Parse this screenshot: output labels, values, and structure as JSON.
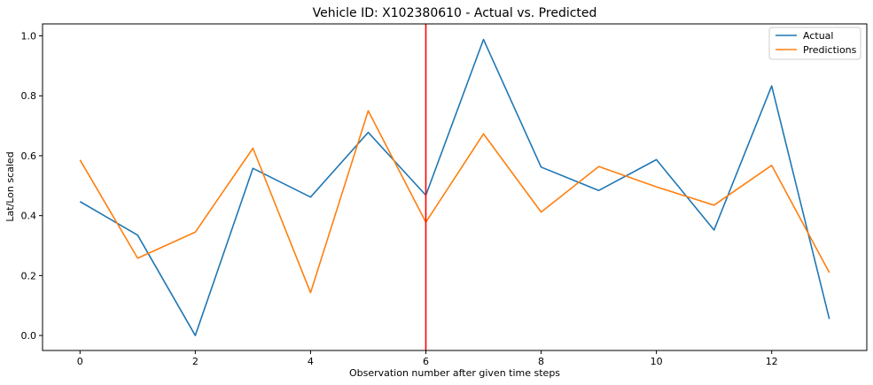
{
  "chart_data": {
    "type": "line",
    "title": "Vehicle ID: X102380610 - Actual vs. Predicted",
    "xlabel": "Observation number after given time steps",
    "ylabel": "Lat/Lon scaled",
    "x": [
      0,
      1,
      2,
      3,
      4,
      5,
      6,
      7,
      8,
      9,
      10,
      11,
      12,
      13
    ],
    "xlim": [
      -0.65,
      13.65
    ],
    "ylim": [
      -0.05,
      1.04
    ],
    "xticks": [
      0,
      2,
      4,
      6,
      8,
      10,
      12
    ],
    "xtick_labels": [
      "0",
      "2",
      "4",
      "6",
      "8",
      "10",
      "12"
    ],
    "yticks": [
      0.0,
      0.2,
      0.4,
      0.6,
      0.8,
      1.0
    ],
    "ytick_labels": [
      "0.0",
      "0.2",
      "0.4",
      "0.6",
      "0.8",
      "1.0"
    ],
    "grid": false,
    "legend_position": "top-right",
    "series": [
      {
        "name": "Actual",
        "color": "#1f77b4",
        "values": [
          0.447,
          0.335,
          0.0,
          0.558,
          0.462,
          0.678,
          0.468,
          0.988,
          0.562,
          0.484,
          0.587,
          0.352,
          0.833,
          0.055
        ]
      },
      {
        "name": "Predictions",
        "color": "#ff7f0e",
        "values": [
          0.586,
          0.258,
          0.345,
          0.625,
          0.143,
          0.75,
          0.378,
          0.673,
          0.412,
          0.564,
          0.496,
          0.435,
          0.568,
          0.21
        ]
      }
    ],
    "vertical_line": {
      "x": 6,
      "color": "#ff0000"
    }
  }
}
